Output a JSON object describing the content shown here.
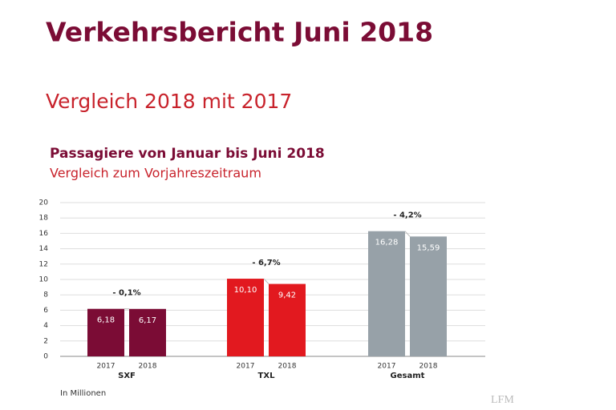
{
  "header": {
    "title": "Verkehrsbericht Juni 2018",
    "subtitle": "Vergleich 2018 mit 2017"
  },
  "chart_data": {
    "type": "bar",
    "title": "Passagiere von Januar bis Juni 2018",
    "subtitle": "Vergleich zum Vorjahreszeitraum",
    "categories": [
      "SXF",
      "TXL",
      "Gesamt"
    ],
    "category_colors": [
      "#7b0c35",
      "#e2191f",
      "#97a1a8"
    ],
    "series": [
      {
        "name": "2017",
        "values": [
          6.18,
          10.1,
          16.28
        ],
        "value_labels": [
          "6,18",
          "10,10",
          "16,28"
        ]
      },
      {
        "name": "2018",
        "values": [
          6.17,
          9.42,
          15.59
        ],
        "value_labels": [
          "6,17",
          "9,42",
          "15,59"
        ]
      }
    ],
    "annotations": [
      "- 0,1%",
      "- 6,7%",
      "- 4,2%"
    ],
    "ylim": [
      0,
      20
    ],
    "yticks": [
      0,
      2,
      4,
      6,
      8,
      10,
      12,
      14,
      16,
      18,
      20
    ],
    "grid": true,
    "note": "In Millionen"
  },
  "watermark": "LFM"
}
